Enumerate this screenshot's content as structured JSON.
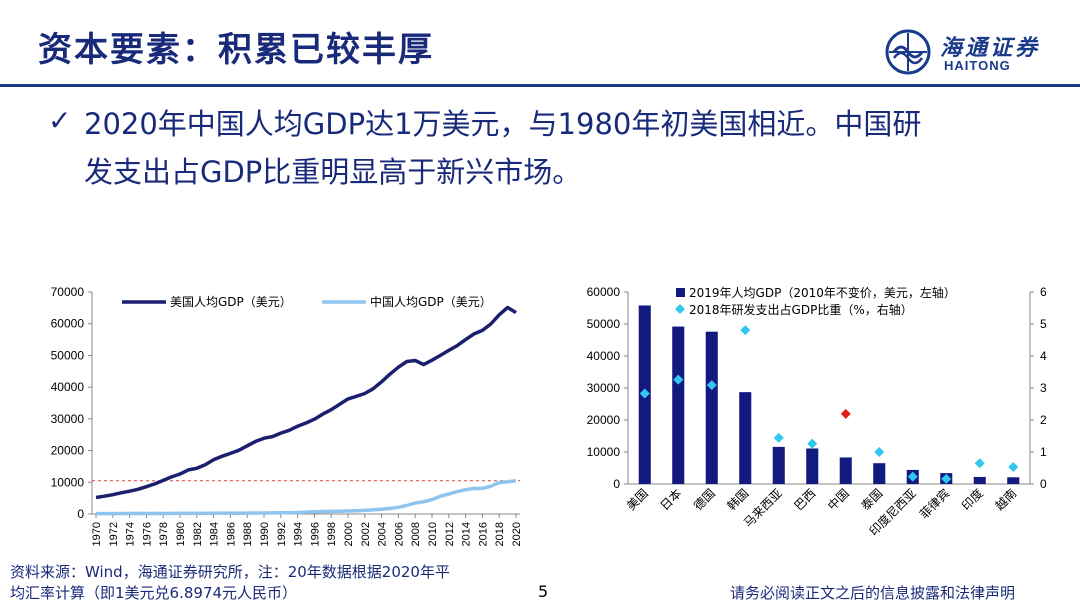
{
  "header": {
    "title": "资本要素：积累已较丰厚",
    "logo_cn": "海通证券",
    "logo_en": "HAITONG"
  },
  "bullet": {
    "icon": "check-icon",
    "line1": "2020年中国人均GDP达1万美元，与1980年初美国相近。中国研",
    "line2": "发支出占GDP比重明显高于新兴市场。"
  },
  "footer": {
    "source_line1": "资料来源：Wind，海通证券研究所，注：20年数据根据2020年平",
    "source_line2": "均汇率计算（即1美元兑6.8974元人民币）",
    "page": "5",
    "disclaimer": "请务必阅读正文之后的信息披露和法律声明"
  },
  "colors": {
    "brand": "#1a2a7a",
    "us_line": "#1a1f6e",
    "cn_line": "#8ec4ee",
    "bar": "#121a80",
    "diamond": "#33c6ee",
    "china_diamond": "#e0201c",
    "ref_line": "#e04040"
  },
  "chart_data": [
    {
      "type": "line",
      "x": [
        "1970",
        "1971",
        "1972",
        "1973",
        "1974",
        "1975",
        "1976",
        "1977",
        "1978",
        "1979",
        "1980",
        "1981",
        "1982",
        "1983",
        "1984",
        "1985",
        "1986",
        "1987",
        "1988",
        "1989",
        "1990",
        "1991",
        "1992",
        "1993",
        "1994",
        "1995",
        "1996",
        "1997",
        "1998",
        "1999",
        "2000",
        "2001",
        "2002",
        "2003",
        "2004",
        "2005",
        "2006",
        "2007",
        "2008",
        "2009",
        "2010",
        "2011",
        "2012",
        "2013",
        "2014",
        "2015",
        "2016",
        "2017",
        "2018",
        "2019",
        "2020"
      ],
      "x_tick_labels": [
        "1970",
        "1972",
        "1974",
        "1976",
        "1978",
        "1980",
        "1982",
        "1984",
        "1986",
        "1988",
        "1990",
        "1992",
        "1994",
        "1996",
        "1998",
        "2000",
        "2002",
        "2004",
        "2006",
        "2008",
        "2010",
        "2012",
        "2014",
        "2016",
        "2018",
        "2020"
      ],
      "series": [
        {
          "name": "美国人均GDP（美元）",
          "values": [
            5200,
            5600,
            6100,
            6700,
            7200,
            7800,
            8600,
            9500,
            10600,
            11700,
            12600,
            13900,
            14400,
            15500,
            17100,
            18200,
            19100,
            20100,
            21500,
            22900,
            23900,
            24400,
            25500,
            26400,
            27700,
            28700,
            29900,
            31500,
            32900,
            34600,
            36300,
            37100,
            38000,
            39500,
            41700,
            44100,
            46300,
            48100,
            48400,
            47100,
            48500,
            50000,
            51600,
            53100,
            55000,
            56800,
            57900,
            59900,
            62800,
            65100,
            63500
          ]
        },
        {
          "name": "中国人均GDP（美元）",
          "values": [
            113,
            118,
            131,
            156,
            160,
            178,
            165,
            185,
            156,
            183,
            195,
            197,
            203,
            225,
            250,
            294,
            281,
            252,
            284,
            311,
            318,
            333,
            367,
            377,
            473,
            609,
            709,
            781,
            828,
            873,
            959,
            1053,
            1149,
            1289,
            1509,
            1753,
            2099,
            2694,
            3468,
            3832,
            4550,
            5618,
            6317,
            7051,
            7651,
            8033,
            8079,
            8760,
            9905,
            10144,
            10500
          ]
        }
      ],
      "reference_line": {
        "y": 10500,
        "style": "dashed"
      },
      "ylim": [
        0,
        70000
      ],
      "y_ticks": [
        0,
        10000,
        20000,
        30000,
        40000,
        50000,
        60000,
        70000
      ],
      "grid": false,
      "legend": "top"
    },
    {
      "type": "bar",
      "categories": [
        "美国",
        "日本",
        "德国",
        "韩国",
        "马来西亚",
        "巴西",
        "中国",
        "泰国",
        "印度尼西亚",
        "菲律宾",
        "印度",
        "越南"
      ],
      "series": [
        {
          "name": "2019年人均GDP（2010年不变价，美元，左轴）",
          "type": "bar",
          "axis": "left",
          "values": [
            55800,
            49200,
            47600,
            28700,
            11600,
            11100,
            8300,
            6500,
            4400,
            3400,
            2200,
            2100
          ]
        },
        {
          "name": "2018年研发支出占GDP比重（%，右轴）",
          "type": "scatter",
          "marker": "diamond",
          "axis": "right",
          "values": [
            2.83,
            3.26,
            3.09,
            4.81,
            1.44,
            1.26,
            2.19,
            1.0,
            0.23,
            0.16,
            0.65,
            0.53
          ]
        }
      ],
      "highlight_category": "中国",
      "ylim_left": [
        0,
        60000
      ],
      "y_ticks_left": [
        0,
        10000,
        20000,
        30000,
        40000,
        50000,
        60000
      ],
      "ylim_right": [
        0,
        6
      ],
      "y_ticks_right": [
        0,
        1,
        2,
        3,
        4,
        5,
        6
      ],
      "grid": false,
      "legend": "top-left"
    }
  ]
}
